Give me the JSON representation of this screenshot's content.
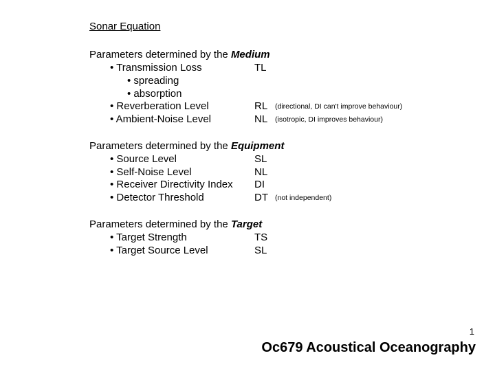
{
  "colors": {
    "text": "#000000",
    "background": "#ffffff"
  },
  "title": "Sonar Equation",
  "sections": [
    {
      "heading_prefix": "Parameters determined by the ",
      "heading_emph": "Medium",
      "rows": [
        {
          "indent": 1,
          "label": "• Transmission Loss",
          "abbr": "TL",
          "note": ""
        },
        {
          "indent": 2,
          "label": "• spreading",
          "abbr": "",
          "note": ""
        },
        {
          "indent": 2,
          "label": "• absorption",
          "abbr": "",
          "note": ""
        },
        {
          "indent": 1,
          "label": "• Reverberation Level",
          "abbr": "RL",
          "note": "(directional, DI can't improve behaviour)"
        },
        {
          "indent": 1,
          "label": "• Ambient-Noise Level",
          "abbr": "NL",
          "note": "(isotropic, DI improves behaviour)"
        }
      ]
    },
    {
      "heading_prefix": "Parameters determined by the ",
      "heading_emph": "Equipment",
      "rows": [
        {
          "indent": 1,
          "label": "• Source Level",
          "abbr": "SL",
          "note": ""
        },
        {
          "indent": 1,
          "label": "• Self-Noise Level",
          "abbr": "NL",
          "note": ""
        },
        {
          "indent": 1,
          "label": "• Receiver Directivity Index",
          "abbr": "DI",
          "note": ""
        },
        {
          "indent": 1,
          "label": "• Detector Threshold",
          "abbr": "DT",
          "note": "(not independent)"
        }
      ]
    },
    {
      "heading_prefix": "Parameters determined by the ",
      "heading_emph": "Target",
      "rows": [
        {
          "indent": 1,
          "label": "• Target Strength",
          "abbr": "TS",
          "note": ""
        },
        {
          "indent": 1,
          "label": "• Target Source Level",
          "abbr": "SL",
          "note": ""
        }
      ]
    }
  ],
  "footer": {
    "page_number": "1",
    "course": "Oc679 Acoustical Oceanography"
  }
}
